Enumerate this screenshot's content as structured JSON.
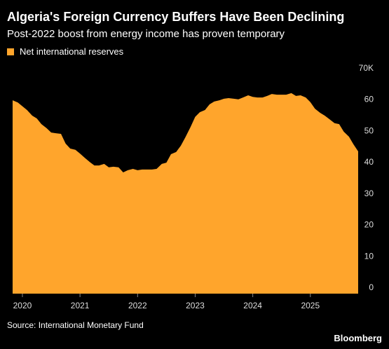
{
  "chart_data": {
    "type": "area",
    "title": "Algeria's Foreign Currency Buffers Have Been Declining",
    "subtitle": "Post-2022 boost from energy income has proven temporary",
    "source": "Source: International Monetary Fund",
    "brand": "Bloomberg",
    "legend": "top-left",
    "series": [
      {
        "name": "Net international reserves",
        "color": "#ffa52c",
        "values": [
          61.7,
          61,
          59.8,
          58.6,
          56.8,
          55.9,
          54.1,
          52.8,
          51.4,
          51.2,
          51,
          47.9,
          46.3,
          45.9,
          44.7,
          43.4,
          42,
          40.9,
          40.9,
          41.4,
          40.3,
          40.5,
          40.3,
          38.7,
          39.4,
          39.8,
          39.4,
          39.6,
          39.6,
          39.6,
          39.8,
          41.4,
          41.8,
          44.5,
          45.2,
          47.2,
          49.9,
          53.2,
          56.4,
          57.9,
          58.6,
          60.4,
          61.3,
          61.7,
          62.2,
          62.4,
          62.2,
          62,
          62.6,
          63.3,
          62.8,
          62.6,
          62.6,
          63.1,
          63.7,
          63.5,
          63.5,
          63.5,
          64,
          63.1,
          63.3,
          62.6,
          61.1,
          59,
          57.7,
          56.8,
          55.7,
          54.4,
          54.1,
          51.7,
          50.1,
          47.6,
          45.4
        ]
      }
    ],
    "x": [
      2019.83,
      2019.92,
      2020,
      2020.08,
      2020.17,
      2020.25,
      2020.33,
      2020.42,
      2020.5,
      2020.58,
      2020.67,
      2020.75,
      2020.83,
      2020.92,
      2021,
      2021.08,
      2021.17,
      2021.25,
      2021.33,
      2021.42,
      2021.5,
      2021.58,
      2021.67,
      2021.75,
      2021.83,
      2021.92,
      2022,
      2022.08,
      2022.17,
      2022.25,
      2022.33,
      2022.42,
      2022.5,
      2022.58,
      2022.67,
      2022.75,
      2022.83,
      2022.92,
      2023,
      2023.08,
      2023.17,
      2023.25,
      2023.33,
      2023.42,
      2023.5,
      2023.58,
      2023.67,
      2023.75,
      2023.83,
      2023.92,
      2024,
      2024.08,
      2024.17,
      2024.25,
      2024.33,
      2024.42,
      2024.5,
      2024.58,
      2024.67,
      2024.75,
      2024.83,
      2024.92,
      2025,
      2025.08,
      2025.17,
      2025.25,
      2025.33,
      2025.42,
      2025.5,
      2025.58,
      2025.67,
      2025.75,
      2025.83
    ],
    "xlim": [
      2019.83,
      2025.83
    ],
    "xticks": [
      2020,
      2021,
      2022,
      2023,
      2024,
      2025
    ],
    "ylim": [
      0,
      70
    ],
    "yticks": [
      0,
      10,
      20,
      30,
      40,
      50,
      60,
      {
        "value": 70,
        "label": "70K"
      }
    ]
  }
}
